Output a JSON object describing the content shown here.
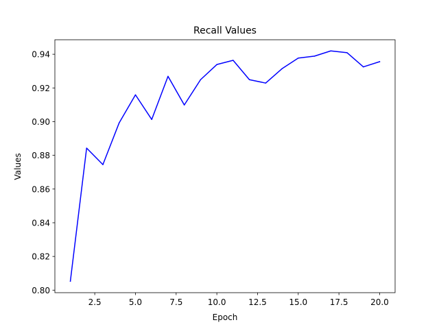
{
  "chart_data": {
    "type": "line",
    "title": "Recall Values",
    "xlabel": "Epoch",
    "ylabel": "Values",
    "xlim": [
      0.05,
      20.95
    ],
    "ylim": [
      0.7985,
      0.9486
    ],
    "xticks": [
      2.5,
      5.0,
      7.5,
      10.0,
      12.5,
      15.0,
      17.5,
      20.0
    ],
    "xtick_labels": [
      "2.5",
      "5.0",
      "7.5",
      "10.0",
      "12.5",
      "15.0",
      "17.5",
      "20.0"
    ],
    "yticks": [
      0.8,
      0.82,
      0.84,
      0.86,
      0.88,
      0.9,
      0.92,
      0.94
    ],
    "ytick_labels": [
      "0.80",
      "0.82",
      "0.84",
      "0.86",
      "0.88",
      "0.90",
      "0.92",
      "0.94"
    ],
    "grid": false,
    "series": [
      {
        "color": "#0000ff",
        "x": [
          1,
          2,
          3,
          4,
          5,
          6,
          7,
          8,
          9,
          10,
          11,
          12,
          13,
          14,
          15,
          16,
          17,
          18,
          19,
          20
        ],
        "values": [
          0.8053,
          0.8843,
          0.8745,
          0.8993,
          0.9159,
          0.9013,
          0.9269,
          0.9099,
          0.9249,
          0.9339,
          0.9364,
          0.9249,
          0.9229,
          0.9314,
          0.9377,
          0.9389,
          0.942,
          0.9409,
          0.9325,
          0.9356
        ]
      }
    ]
  }
}
